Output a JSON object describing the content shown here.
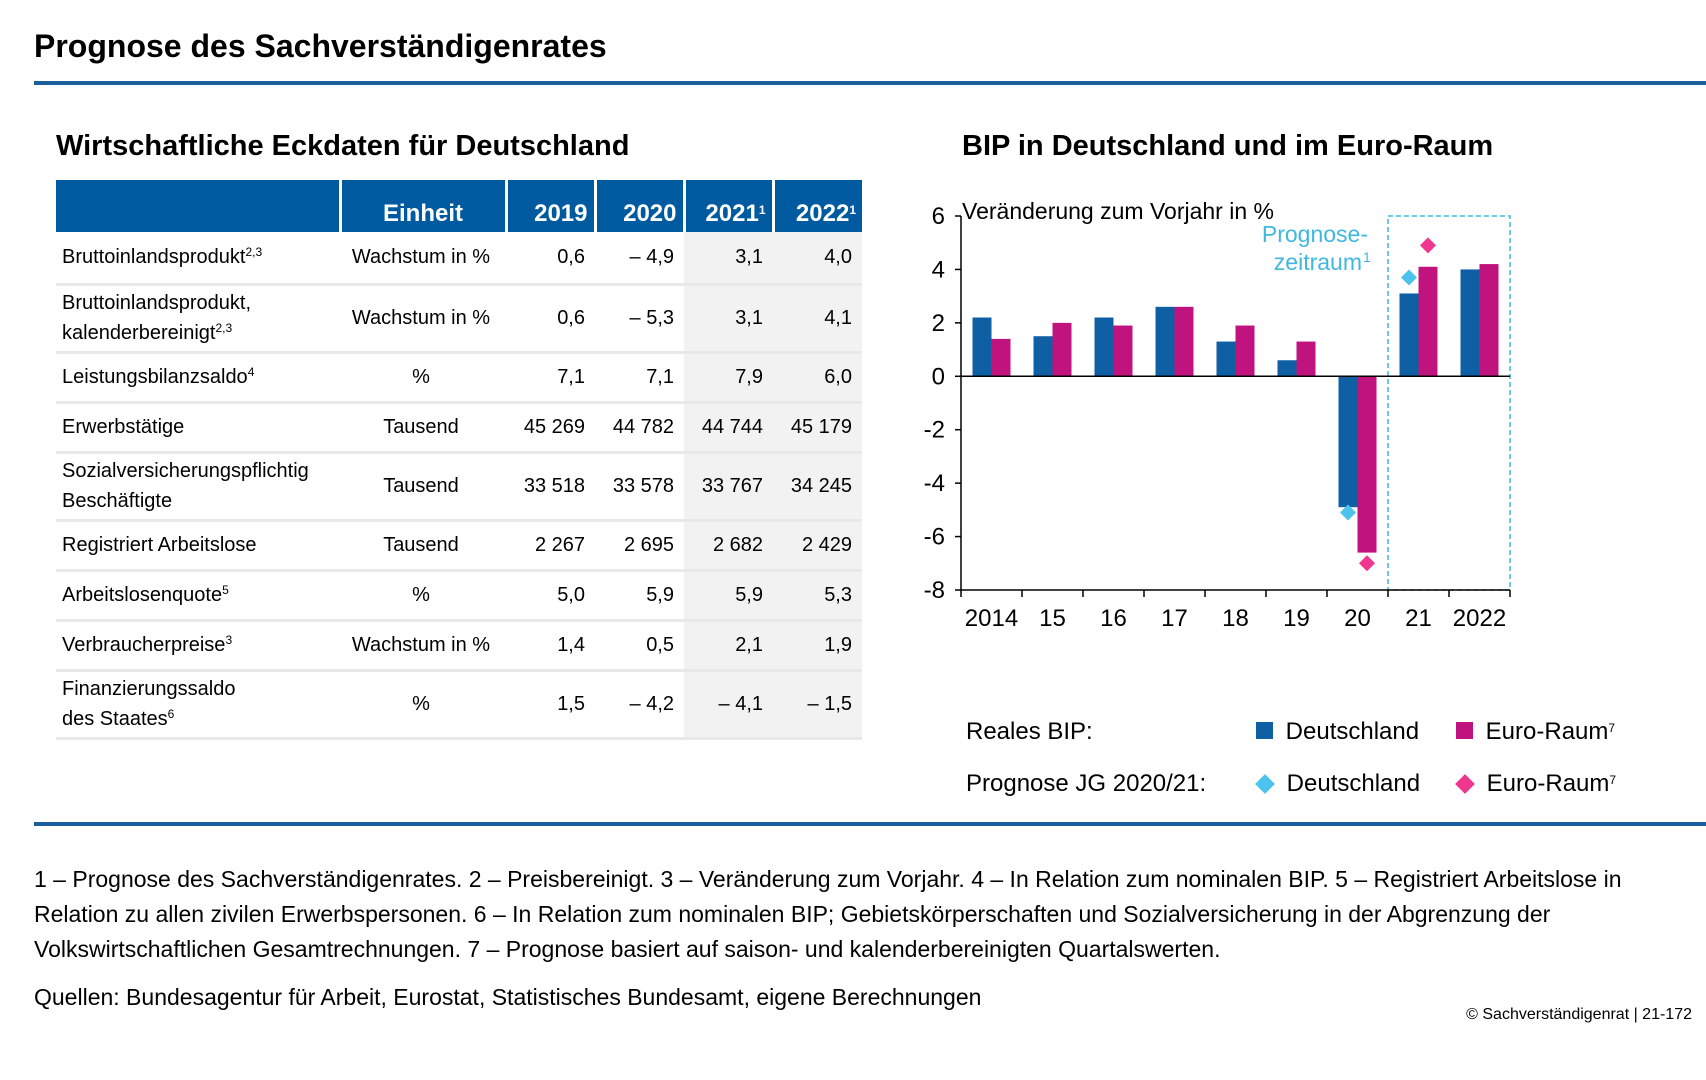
{
  "page_title": "Prognose des Sachverständigenrates",
  "table": {
    "title": "Wirtschaftliche Eckdaten für Deutschland",
    "headers": {
      "unit": "Einheit",
      "y2019": "2019",
      "y2020": "2020",
      "y2021": "2021",
      "y2022": "2022",
      "fn": "1"
    },
    "rows": [
      {
        "l1": "Bruttoinlandsprodukt",
        "l1sup": "2,3",
        "l2": "",
        "l2sup": "",
        "unit": "Wachstum in %",
        "v": [
          "0,6",
          "– 4,9",
          "3,1",
          "4,0"
        ]
      },
      {
        "l1": "Bruttoinlandsprodukt,",
        "l1sup": "",
        "l2": "kalenderbereinigt",
        "l2sup": "2,3",
        "unit": "Wachstum in %",
        "v": [
          "0,6",
          "– 5,3",
          "3,1",
          "4,1"
        ]
      },
      {
        "l1": "Leistungsbilanzsaldo",
        "l1sup": "4",
        "l2": "",
        "l2sup": "",
        "unit": "%",
        "v": [
          "7,1",
          "7,1",
          "7,9",
          "6,0"
        ]
      },
      {
        "l1": "Erwerbstätige",
        "l1sup": "",
        "l2": "",
        "l2sup": "",
        "unit": "Tausend",
        "v": [
          "45 269",
          "44 782",
          "44 744",
          "45 179"
        ]
      },
      {
        "l1": "Sozialversicherungspflichtig",
        "l1sup": "",
        "l2": "Beschäftigte",
        "l2sup": "",
        "unit": "Tausend",
        "v": [
          "33 518",
          "33 578",
          "33 767",
          "34 245"
        ]
      },
      {
        "l1": "Registriert Arbeitslose",
        "l1sup": "",
        "l2": "",
        "l2sup": "",
        "unit": "Tausend",
        "v": [
          "2 267",
          "2 695",
          "2 682",
          "2 429"
        ]
      },
      {
        "l1": "Arbeitslosenquote",
        "l1sup": "5",
        "l2": "",
        "l2sup": "",
        "unit": "%",
        "v": [
          "5,0",
          "5,9",
          "5,9",
          "5,3"
        ]
      },
      {
        "l1": "Verbraucherpreise",
        "l1sup": "3",
        "l2": "",
        "l2sup": "",
        "unit": "Wachstum in %",
        "v": [
          "1,4",
          "0,5",
          "2,1",
          "1,9"
        ]
      },
      {
        "l1": "Finanzierungssaldo",
        "l1sup": "",
        "l2": "des Staates",
        "l2sup": "6",
        "unit": "%",
        "v": [
          "1,5",
          "– 4,2",
          "– 4,1",
          "– 1,5"
        ]
      }
    ]
  },
  "chart": {
    "title": "BIP in Deutschland und im Euro-Raum",
    "subtitle": "Veränderung zum Vorjahr in %",
    "forecast_label_1": "Prognose-",
    "forecast_label_2": "zeitraum",
    "forecast_label_sup": "1",
    "legend": {
      "row1_label": "Reales BIP:",
      "row2_label": "Prognose JG 2020/21:",
      "de": "Deutschland",
      "ea": "Euro-Raum",
      "ea_sup": "7"
    },
    "colors": {
      "de_bar": "#0e5fa3",
      "ea_bar": "#c0137e",
      "de_prog": "#4cc3ec",
      "ea_prog": "#f0368e",
      "forecast": "#3fb8e0"
    }
  },
  "chart_data": {
    "type": "bar",
    "categories": [
      "2014",
      "15",
      "16",
      "17",
      "18",
      "19",
      "20",
      "21",
      "2022"
    ],
    "series": [
      {
        "name": "Deutschland",
        "values": [
          2.2,
          1.5,
          2.2,
          2.6,
          1.3,
          0.6,
          -4.9,
          3.1,
          4.0
        ]
      },
      {
        "name": "Euro-Raum",
        "values": [
          1.4,
          2.0,
          1.9,
          2.6,
          1.9,
          1.3,
          -6.6,
          4.1,
          4.2
        ]
      }
    ],
    "prognose_jg_2020_21": {
      "categories": [
        "20",
        "21"
      ],
      "Deutschland": [
        -5.1,
        3.7
      ],
      "Euro-Raum": [
        -7.0,
        4.9
      ]
    },
    "ylim": [
      -8,
      6
    ],
    "yticks": [
      6,
      4,
      2,
      0,
      -2,
      -4,
      -6,
      -8
    ],
    "forecast_from": "21",
    "grid": false,
    "legend_position": "bottom"
  },
  "footnotes": "1 – Prognose des Sachverständigenrates.  2 – Preisbereinigt.  3 – Veränderung zum Vorjahr.  4 – In Relation zum nominalen BIP.  5 – Registriert Arbeitslose in Relation zu allen zivilen Erwerbspersonen.  6 – In Relation zum nominalen BIP; Gebietskörperschaften und Sozialversicherung in der Abgrenzung der Volkswirtschaftlichen Gesamtrechnungen.  7 – Prognose basiert auf saison- und kalenderbereinigten Quartalswerten.",
  "sources": "Quellen: Bundesagentur für Arbeit, Eurostat, Statistisches Bundesamt, eigene Berechnungen",
  "copyright": "© Sachverständigenrat | 21-172"
}
